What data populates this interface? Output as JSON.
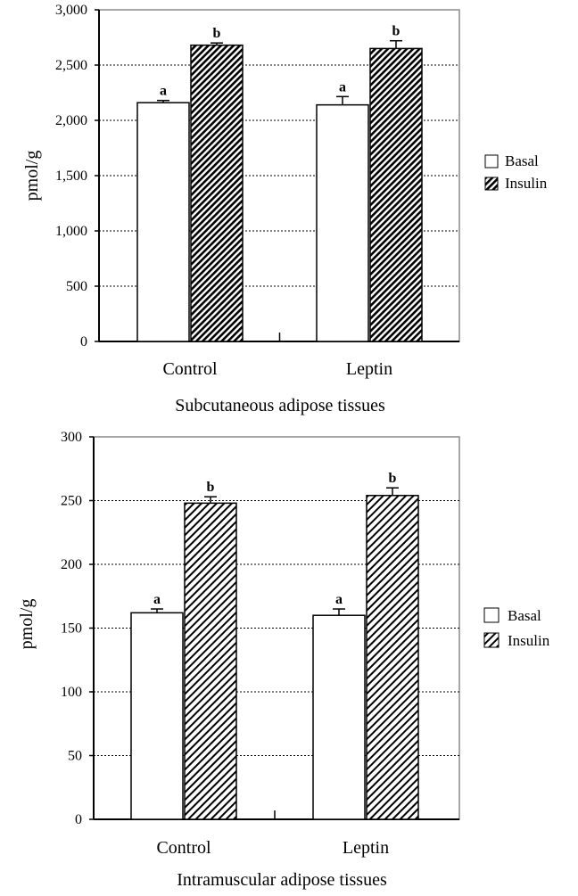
{
  "chart_data": [
    {
      "type": "bar",
      "title": "",
      "xlabel": "Subcutaneous adipose tissues",
      "ylabel": "pmol/g",
      "ylim": [
        0,
        3000
      ],
      "yticks": [
        "0",
        "500",
        "1,000",
        "1,500",
        "2,000",
        "2,500",
        "3,000"
      ],
      "ytick_values": [
        0,
        500,
        1000,
        1500,
        2000,
        2500,
        3000
      ],
      "grid": true,
      "legend_position": "right",
      "categories": [
        "Control",
        "Leptin"
      ],
      "series": [
        {
          "name": "Basal",
          "values": [
            2160,
            2140
          ],
          "errors": [
            20,
            75
          ],
          "labels": [
            "a",
            "a"
          ],
          "pattern": "white"
        },
        {
          "name": "Insulin",
          "values": [
            2680,
            2650
          ],
          "errors": [
            20,
            70
          ],
          "labels": [
            "b",
            "b"
          ],
          "pattern": "dense-hatch"
        }
      ]
    },
    {
      "type": "bar",
      "title": "",
      "xlabel": "Intramuscular adipose tissues",
      "ylabel": "pmol/g",
      "ylim": [
        0,
        300
      ],
      "yticks": [
        "0",
        "50",
        "100",
        "150",
        "200",
        "250",
        "300"
      ],
      "ytick_values": [
        0,
        50,
        100,
        150,
        200,
        250,
        300
      ],
      "grid": true,
      "legend_position": "right",
      "categories": [
        "Control",
        "Leptin"
      ],
      "series": [
        {
          "name": "Basal",
          "values": [
            162,
            160
          ],
          "errors": [
            3,
            5
          ],
          "labels": [
            "a",
            "a"
          ],
          "pattern": "white"
        },
        {
          "name": "Insulin",
          "values": [
            248,
            254
          ],
          "errors": [
            5,
            6
          ],
          "labels": [
            "b",
            "b"
          ],
          "pattern": "light-hatch"
        }
      ]
    }
  ]
}
